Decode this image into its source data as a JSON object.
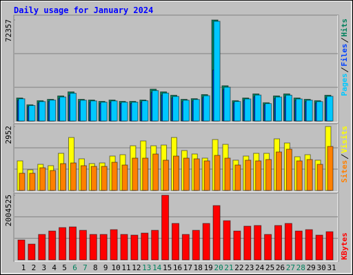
{
  "chart_data": [
    {
      "type": "bar",
      "title": "Daily usage for January 2024",
      "categories": [
        "1",
        "2",
        "3",
        "4",
        "5",
        "6",
        "7",
        "8",
        "9",
        "10",
        "11",
        "12",
        "13",
        "14",
        "15",
        "16",
        "17",
        "18",
        "19",
        "20",
        "21",
        "22",
        "23",
        "24",
        "25",
        "26",
        "27",
        "28",
        "29",
        "30",
        "31"
      ],
      "category_colors": [
        "#000000",
        "#000000",
        "#000000",
        "#000000",
        "#000000",
        "#00805c",
        "#00805c",
        "#000000",
        "#000000",
        "#000000",
        "#000000",
        "#000000",
        "#00805c",
        "#00805c",
        "#000000",
        "#000000",
        "#000000",
        "#000000",
        "#000000",
        "#00805c",
        "#00805c",
        "#000000",
        "#000000",
        "#000000",
        "#000000",
        "#000000",
        "#00805c",
        "#00805c",
        "#000000",
        "#000000",
        "#000000"
      ],
      "ylim": [
        0,
        72357
      ],
      "yticks": [
        72357
      ],
      "series": [
        {
          "name": "Hits",
          "color": "#00805c",
          "values": [
            16500,
            11650,
            14570,
            15540,
            17970,
            20880,
            15540,
            15050,
            14080,
            15050,
            14080,
            14080,
            15050,
            22820,
            20880,
            18450,
            15540,
            16020,
            18940,
            72357,
            25250,
            14570,
            16500,
            19420,
            13110,
            17970,
            19420,
            16500,
            15540,
            14570,
            18450
          ]
        },
        {
          "name": "Files",
          "color": "#0040ff",
          "values": [
            14800,
            10300,
            12900,
            13900,
            16000,
            18500,
            13800,
            13400,
            12500,
            13400,
            12500,
            12500,
            13400,
            20300,
            18600,
            16400,
            13800,
            14300,
            16800,
            36500,
            22500,
            13000,
            14700,
            17300,
            11600,
            16000,
            17200,
            14700,
            13800,
            12900,
            16400
          ]
        },
        {
          "name": "Pages",
          "color": "#00c8ff",
          "values": [
            15900,
            11100,
            13900,
            15000,
            17200,
            19900,
            14900,
            14400,
            13500,
            14400,
            13500,
            13500,
            14500,
            21800,
            20000,
            17600,
            14900,
            15400,
            18100,
            71400,
            24200,
            14000,
            15800,
            18600,
            12500,
            17200,
            18500,
            15800,
            14900,
            13900,
            17700
          ]
        }
      ]
    },
    {
      "type": "bar",
      "ylim": [
        0,
        2952
      ],
      "yticks": [
        2952
      ],
      "series": [
        {
          "name": "Visits",
          "color": "#ffff00",
          "values": [
            1365,
            952,
            1206,
            1143,
            1714,
            2444,
            1460,
            1238,
            1270,
            1587,
            1650,
            2063,
            2285,
            2063,
            2095,
            2444,
            1841,
            1682,
            1492,
            2349,
            2127,
            1397,
            1587,
            1714,
            1714,
            2381,
            2190,
            1555,
            1650,
            1397,
            2952
          ]
        },
        {
          "name": "Sites",
          "color": "#ff8000",
          "values": [
            794,
            794,
            1047,
            920,
            1238,
            1270,
            1143,
            1111,
            1111,
            1301,
            1174,
            1492,
            1492,
            1682,
            1397,
            1587,
            1492,
            1460,
            1365,
            1619,
            1492,
            1174,
            1397,
            1365,
            1428,
            1777,
            1904,
            1365,
            1428,
            1206,
            2031
          ]
        }
      ]
    },
    {
      "type": "bar",
      "ylim": [
        0,
        2004525
      ],
      "yticks": [
        2004525
      ],
      "series": [
        {
          "name": "KBytes",
          "color": "#ff0000",
          "values": [
            618000,
            490000,
            789000,
            895000,
            1002000,
            1023000,
            917000,
            789000,
            789000,
            938000,
            789000,
            768000,
            831000,
            917000,
            2004525,
            1130000,
            789000,
            917000,
            1130000,
            1684000,
            1215000,
            895000,
            1045000,
            1066000,
            789000,
            1066000,
            1130000,
            895000,
            938000,
            768000,
            874000
          ]
        }
      ]
    }
  ]
}
